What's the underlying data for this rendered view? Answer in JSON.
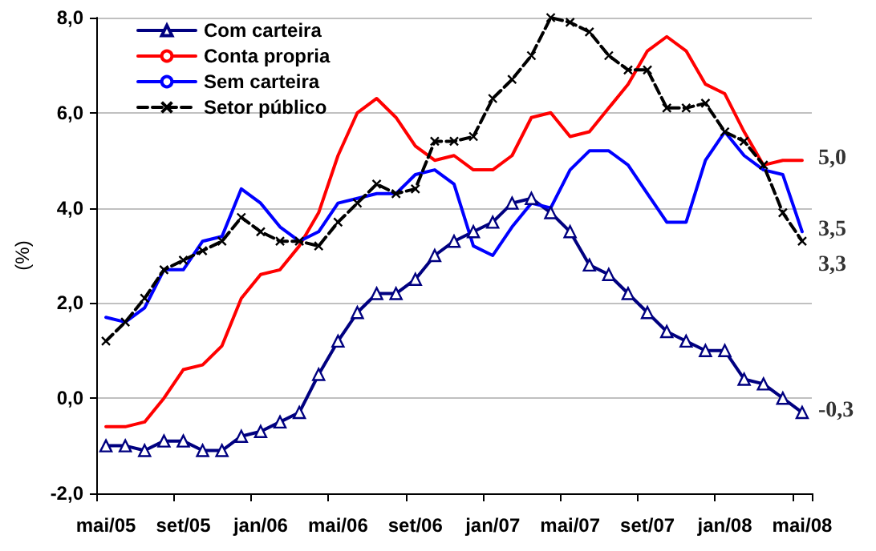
{
  "chart_data": {
    "type": "line",
    "ylabel": "(%)",
    "categories": [
      "mai/05",
      null,
      null,
      null,
      "set/05",
      null,
      null,
      null,
      "jan/06",
      null,
      null,
      null,
      "mai/06",
      null,
      null,
      null,
      "set/06",
      null,
      null,
      null,
      "jan/07",
      null,
      null,
      null,
      "mai/07",
      null,
      null,
      null,
      "set/07",
      null,
      null,
      null,
      "jan/08",
      null,
      null,
      null,
      "mai/08"
    ],
    "series": [
      {
        "name": "Com carteira",
        "color": "#000080",
        "marker": "triangle",
        "line_style": "solid",
        "values": [
          -1.0,
          -1.0,
          -1.1,
          -0.9,
          -0.9,
          -1.1,
          -1.1,
          -0.8,
          -0.7,
          -0.5,
          -0.3,
          0.5,
          1.2,
          1.8,
          2.2,
          2.2,
          2.5,
          3.0,
          3.3,
          3.5,
          3.7,
          4.1,
          4.2,
          3.9,
          3.5,
          2.8,
          2.6,
          2.2,
          1.8,
          1.4,
          1.2,
          1.0,
          1.0,
          0.4,
          0.3,
          0.0,
          -0.3
        ]
      },
      {
        "name": "Conta propria",
        "color": "#ff0000",
        "marker": "none",
        "line_style": "solid",
        "values": [
          -0.6,
          -0.6,
          -0.5,
          0.0,
          0.6,
          0.7,
          1.1,
          2.1,
          2.6,
          2.7,
          3.2,
          3.9,
          5.1,
          6.0,
          6.3,
          5.9,
          5.3,
          5.0,
          5.1,
          4.8,
          4.8,
          5.1,
          5.9,
          6.0,
          5.5,
          5.6,
          6.1,
          6.6,
          7.3,
          7.6,
          7.3,
          6.6,
          6.4,
          5.6,
          4.9,
          5.0,
          5.0
        ]
      },
      {
        "name": "Sem carteira",
        "color": "#0000ff",
        "marker": "none",
        "line_style": "solid",
        "values": [
          1.7,
          1.6,
          1.9,
          2.7,
          2.7,
          3.3,
          3.4,
          4.4,
          4.1,
          3.6,
          3.3,
          3.5,
          4.1,
          4.2,
          4.3,
          4.3,
          4.7,
          4.8,
          4.5,
          3.2,
          3.0,
          3.6,
          4.1,
          4.0,
          4.8,
          5.2,
          5.2,
          4.9,
          4.3,
          3.7,
          3.7,
          5.0,
          5.6,
          5.1,
          4.8,
          4.7,
          3.5
        ]
      },
      {
        "name": "Setor público",
        "color": "#000000",
        "marker": "cross",
        "line_style": "dashed",
        "values": [
          1.2,
          1.6,
          2.1,
          2.7,
          2.9,
          3.1,
          3.3,
          3.8,
          3.5,
          3.3,
          3.3,
          3.2,
          3.7,
          4.1,
          4.5,
          4.3,
          4.4,
          5.4,
          5.4,
          5.5,
          6.3,
          6.7,
          7.2,
          8.0,
          7.9,
          7.7,
          7.2,
          6.9,
          6.9,
          6.1,
          6.1,
          6.2,
          5.6,
          5.4,
          4.9,
          3.9,
          3.3
        ]
      }
    ],
    "ylim": [
      -2,
      8
    ],
    "yticks": [
      {
        "value": -2,
        "label": "-2,0"
      },
      {
        "value": 0,
        "label": "0,0"
      },
      {
        "value": 2,
        "label": "2,0"
      },
      {
        "value": 4,
        "label": "4,0"
      },
      {
        "value": 6,
        "label": "6,0"
      },
      {
        "value": 8,
        "label": "8,0"
      }
    ],
    "grid": "y",
    "legend": "top left",
    "annotations": [
      {
        "text": "5,0",
        "x": "mai/08",
        "y": 5.0
      },
      {
        "text": "3,5",
        "x": "mai/08",
        "y": 3.5
      },
      {
        "text": "3,3",
        "x": "mai/08",
        "y": 3.3
      },
      {
        "text": "-0,3",
        "x": "mai/08",
        "y": -0.3
      }
    ]
  }
}
